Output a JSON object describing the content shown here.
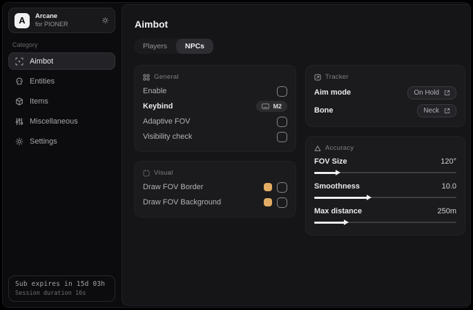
{
  "colors": {
    "accent_swatch": "#e3ac64"
  },
  "sidebar": {
    "brand": {
      "initial": "A",
      "name": "Arcane",
      "subtitle": "for PIONER"
    },
    "category_label": "Category",
    "items": [
      {
        "label": "Aimbot",
        "icon": "crosshair-scan-icon",
        "active": true
      },
      {
        "label": "Entities",
        "icon": "skull-icon",
        "active": false
      },
      {
        "label": "Items",
        "icon": "package-icon",
        "active": false
      },
      {
        "label": "Miscellaneous",
        "icon": "sliders-icon",
        "active": false
      },
      {
        "label": "Settings",
        "icon": "gear-icon",
        "active": false
      }
    ],
    "footer": {
      "line1": "Sub expires in 15d 03h",
      "line2": "Session duration 16s"
    }
  },
  "main": {
    "title": "Aimbot",
    "tabs": [
      {
        "label": "Players",
        "active": false
      },
      {
        "label": "NPCs",
        "active": true
      }
    ],
    "panels": {
      "general": {
        "title": "General",
        "rows": [
          {
            "label": "Enable",
            "control": "checkbox",
            "checked": false
          },
          {
            "label": "Keybind",
            "control": "keybind",
            "value": "M2"
          },
          {
            "label": "Adaptive FOV",
            "control": "checkbox",
            "checked": false
          },
          {
            "label": "Visibility check",
            "control": "checkbox",
            "checked": false
          }
        ]
      },
      "visual": {
        "title": "Visual",
        "rows": [
          {
            "label": "Draw FOV Border",
            "control": "color-checkbox",
            "checked": false
          },
          {
            "label": "Draw FOV Background",
            "control": "color-checkbox",
            "checked": false
          }
        ]
      },
      "tracker": {
        "title": "Tracker",
        "rows": [
          {
            "label": "Aim mode",
            "control": "dropdown",
            "value": "On Hold"
          },
          {
            "label": "Bone",
            "control": "dropdown",
            "value": "Neck"
          }
        ]
      },
      "accuracy": {
        "title": "Accuracy",
        "sliders": [
          {
            "label": "FOV Size",
            "value": "120°",
            "fill_pct": 16
          },
          {
            "label": "Smoothness",
            "value": "10.0",
            "fill_pct": 38
          },
          {
            "label": "Max distance",
            "value": "250m",
            "fill_pct": 22
          }
        ]
      }
    }
  }
}
